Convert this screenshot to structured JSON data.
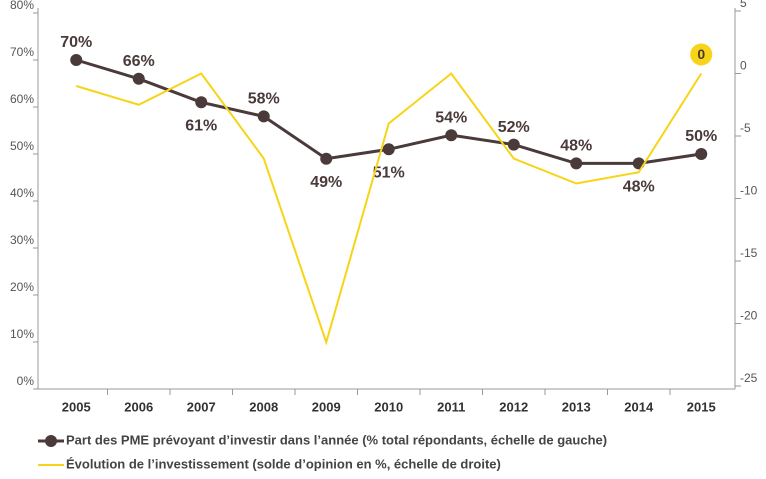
{
  "chart_data": {
    "type": "line",
    "categories": [
      "2005",
      "2006",
      "2007",
      "2008",
      "2009",
      "2010",
      "2011",
      "2012",
      "2013",
      "2014",
      "2015"
    ],
    "series": [
      {
        "name": "Part des PME prévoyant d’investir dans l’année (% total répondants, échelle de gauche)",
        "color": "#4a3a3a",
        "axis": "y",
        "values": [
          70,
          66,
          61,
          58,
          49,
          51,
          54,
          52,
          48,
          48,
          50
        ],
        "value_labels": [
          "70%",
          "66%",
          "61%",
          "58%",
          "49%",
          "51%",
          "54%",
          "52%",
          "48%",
          "48%",
          "50%"
        ]
      },
      {
        "name": "Évolution de l’investissement (solde d’opinion en %, échelle de droite)",
        "color": "#f7d417",
        "axis": "y2",
        "values": [
          -1,
          -2.5,
          0,
          -6.8,
          -21.5,
          -4,
          0,
          -6.8,
          -8.8,
          -7.9,
          0
        ],
        "value_labels": [
          null,
          null,
          null,
          null,
          null,
          null,
          null,
          null,
          null,
          null,
          "0"
        ]
      }
    ],
    "ylim": [
      0,
      80
    ],
    "yticks": [
      {
        "value": 0,
        "label": "0%"
      },
      {
        "value": 10,
        "label": "10%"
      },
      {
        "value": 20,
        "label": "20%"
      },
      {
        "value": 30,
        "label": "30%"
      },
      {
        "value": 40,
        "label": "40%"
      },
      {
        "value": 50,
        "label": "50%"
      },
      {
        "value": 60,
        "label": "60%"
      },
      {
        "value": 70,
        "label": "70%"
      },
      {
        "value": 80,
        "label": "80%"
      }
    ],
    "y2lim": [
      -25,
      5
    ],
    "y2ticks": [
      -25,
      -20,
      -15,
      -10,
      -5,
      0,
      5
    ]
  }
}
